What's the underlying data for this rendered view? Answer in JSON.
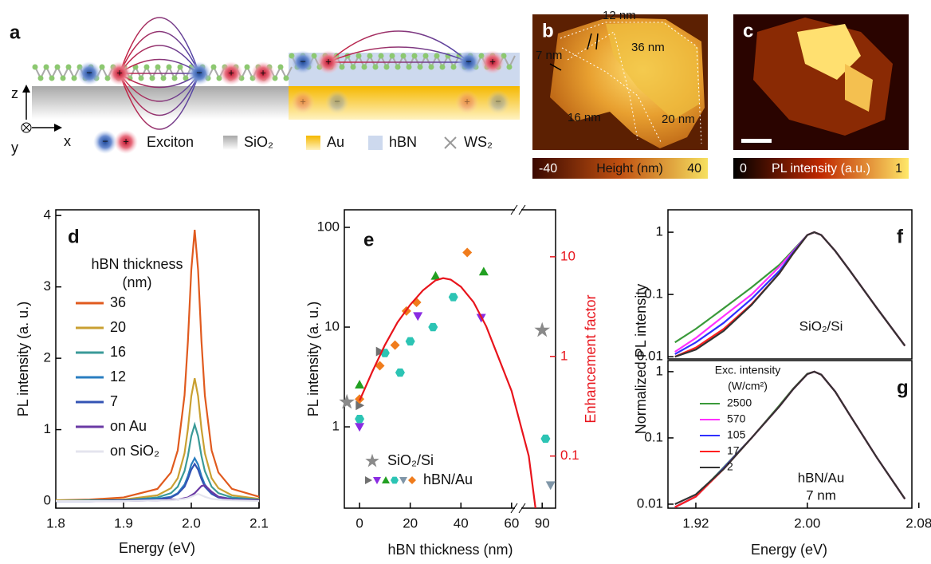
{
  "panels": {
    "a": {
      "label": "a",
      "axes": [
        "z",
        "x",
        "y"
      ],
      "legend": [
        "Exciton",
        "SiO₂",
        "Au",
        "hBN",
        "WS₂"
      ],
      "plus": "+",
      "minus": "−"
    },
    "b": {
      "label": "b",
      "annotations": [
        "12 nm",
        "7 nm",
        "36 nm",
        "16 nm",
        "20 nm"
      ],
      "colorbar": {
        "min": -40,
        "max": 40,
        "label": "Height (nm)"
      }
    },
    "c": {
      "label": "c",
      "colorbar": {
        "min": 0,
        "max": 1,
        "label": "PL intensity (a.u.)"
      }
    }
  },
  "chart_data": [
    {
      "type": "line",
      "panel_label": "d",
      "x_label": "Energy (eV)",
      "y_label": "PL intensity (a. u.)",
      "x": [
        1.8,
        1.85,
        1.9,
        1.95,
        1.97,
        1.98,
        1.99,
        1.995,
        2.0,
        2.005,
        2.01,
        2.015,
        2.02,
        2.03,
        2.04,
        2.06,
        2.1
      ],
      "xlim": [
        1.8,
        2.1
      ],
      "xticks": [
        1.8,
        1.9,
        {
          "value": 2,
          "label": "2.0"
        },
        2.1
      ],
      "ylim": [
        -0.1,
        4.08
      ],
      "yticks": [
        0,
        1,
        2,
        3,
        4
      ],
      "legend_title": [
        "hBN thickness",
        "(nm)"
      ],
      "series": [
        {
          "name": "36",
          "color": "#e05a1e",
          "values": [
            0.01,
            0.02,
            0.05,
            0.17,
            0.4,
            0.71,
            1.48,
            2.24,
            3.24,
            3.8,
            3.24,
            2.24,
            1.48,
            0.71,
            0.4,
            0.17,
            0.06
          ]
        },
        {
          "name": "20",
          "color": "#c9a032",
          "values": [
            0.01,
            0.01,
            0.02,
            0.08,
            0.18,
            0.32,
            0.67,
            1.01,
            1.47,
            1.72,
            1.47,
            1.01,
            0.67,
            0.32,
            0.18,
            0.08,
            0.03
          ]
        },
        {
          "name": "16",
          "color": "#3a9a98",
          "values": [
            0,
            0.01,
            0.01,
            0.05,
            0.11,
            0.2,
            0.42,
            0.63,
            0.91,
            1.07,
            0.91,
            0.63,
            0.42,
            0.2,
            0.11,
            0.05,
            0.02
          ]
        },
        {
          "name": "12",
          "color": "#2a7ec0",
          "values": [
            0,
            0,
            0.01,
            0.03,
            0.06,
            0.11,
            0.23,
            0.35,
            0.51,
            0.6,
            0.51,
            0.35,
            0.23,
            0.11,
            0.06,
            0.03,
            0.01
          ]
        },
        {
          "name": "7",
          "color": "#3454b4",
          "values": [
            0,
            0,
            0.01,
            0.02,
            0.05,
            0.1,
            0.2,
            0.31,
            0.44,
            0.52,
            0.44,
            0.31,
            0.2,
            0.1,
            0.05,
            0.02,
            0.01
          ]
        },
        {
          "name": "on Au",
          "color": "#6a3aa4",
          "values": [
            0,
            0,
            0,
            0.01,
            0.02,
            0.02,
            0.04,
            0.05,
            0.08,
            0.11,
            0.16,
            0.21,
            0.22,
            0.13,
            0.06,
            0.02,
            0.01
          ]
        },
        {
          "name": "on SiO₂",
          "color": "#e4e4ee",
          "values": [
            0,
            0,
            0,
            0.01,
            0.01,
            0.02,
            0.03,
            0.04,
            0.06,
            0.08,
            0.1,
            0.08,
            0.06,
            0.03,
            0.02,
            0.01,
            0
          ]
        }
      ]
    },
    {
      "type": "scatter",
      "panel_label": "e",
      "x_label": "hBN thickness (nm)",
      "y_label": "PL intensity (a. u.)",
      "x_segments": [
        {
          "xlim": [
            -6,
            61
          ],
          "xticks": [
            0,
            20,
            40,
            60
          ]
        },
        {
          "xlim": [
            84,
            94
          ],
          "xticks": [
            90
          ]
        }
      ],
      "ylog": true,
      "ylim": [
        0.153,
        150
      ],
      "yticks": [
        1,
        10,
        100
      ],
      "y2lim": [
        0.03,
        29.6
      ],
      "y2ticks": [
        0.1,
        1,
        10
      ],
      "y2_label": "Enhancement factor",
      "y2_color": "#e8141c",
      "series": [
        {
          "name": "SiO₂/Si",
          "marker": "star",
          "color": "#8a8a8a",
          "x": [
            -5,
            90
          ],
          "values": [
            1.77,
            9.3
          ]
        },
        {
          "name": "hBN/Au",
          "samples": [
            {
              "marker": "tri-right",
              "color": "#707070",
              "x": [
                0,
                8
              ],
              "values": [
                1.64,
                5.7
              ]
            },
            {
              "marker": "tri-down",
              "color": "#8a2be2",
              "x": [
                0,
                23,
                48
              ],
              "values": [
                1.0,
                12.9,
                12.4
              ]
            },
            {
              "marker": "tri-up",
              "color": "#22a022",
              "x": [
                0,
                30,
                49
              ],
              "values": [
                2.65,
                32.6,
                36
              ]
            },
            {
              "marker": "hexagon",
              "color": "#2cc4b4",
              "x": [
                0,
                10,
                16,
                20,
                29,
                37,
                91
              ],
              "values": [
                1.2,
                5.5,
                3.5,
                7.2,
                10,
                20,
                0.76
              ]
            },
            {
              "marker": "tri-down",
              "color": "#8096a8",
              "x": [
                92.5
              ],
              "values": [
                0.26
              ]
            },
            {
              "marker": "diamond",
              "color": "#f07c1c",
              "x": [
                0,
                8,
                14,
                18.5,
                22.5,
                42.5
              ],
              "values": [
                1.9,
                4.1,
                6.6,
                14.5,
                17.7,
                56
              ]
            }
          ]
        },
        {
          "axis": "y2",
          "color": "#e8141c",
          "x": [
            0,
            5,
            10,
            15,
            20,
            25,
            30,
            33,
            36,
            40,
            45,
            50,
            55,
            60,
            86,
            88
          ],
          "values": [
            0.36,
            0.7,
            1.3,
            2.2,
            3.3,
            4.6,
            5.8,
            6.1,
            5.9,
            5.0,
            3.5,
            2.0,
            0.95,
            0.45,
            0.1,
            0.03
          ]
        }
      ]
    },
    {
      "type": "line",
      "panel_label": "f",
      "y_label": "Normalized PL intensity",
      "annotations": [
        "SiO₂/Si"
      ],
      "x": [
        1.905,
        1.92,
        1.94,
        1.96,
        1.98,
        1.99,
        2.0,
        2.005,
        2.01,
        2.02,
        2.03,
        2.05,
        2.07
      ],
      "xlim": [
        1.9,
        2.075
      ],
      "ylog": true,
      "ylim": [
        0.0092,
        2.29
      ],
      "yticks": [
        0.01,
        0.1,
        1
      ],
      "series": [
        {
          "color": "#3a9a3a",
          "values": [
            0.017,
            0.028,
            0.06,
            0.13,
            0.3,
            0.52,
            0.9,
            1,
            0.9,
            0.5,
            0.25,
            0.06,
            0.015
          ]
        },
        {
          "color": "#ff30ff",
          "values": [
            0.012,
            0.02,
            0.045,
            0.1,
            0.28,
            0.5,
            0.9,
            1,
            0.9,
            0.5,
            0.25,
            0.06,
            0.015
          ]
        },
        {
          "color": "#3030ff",
          "values": [
            0.011,
            0.017,
            0.035,
            0.085,
            0.24,
            0.48,
            0.9,
            1,
            0.9,
            0.5,
            0.25,
            0.06,
            0.015
          ]
        },
        {
          "color": "#ff2020",
          "values": [
            0.01,
            0.014,
            0.028,
            0.07,
            0.22,
            0.46,
            0.9,
            1,
            0.9,
            0.5,
            0.25,
            0.06,
            0.015
          ]
        },
        {
          "color": "#333333",
          "values": [
            0.01,
            0.013,
            0.026,
            0.068,
            0.22,
            0.46,
            0.9,
            1,
            0.9,
            0.5,
            0.25,
            0.06,
            0.015
          ]
        }
      ]
    },
    {
      "type": "line",
      "panel_label": "g",
      "x_label": "Energy (eV)",
      "annotations": [
        "hBN/Au",
        "7 nm"
      ],
      "x": [
        1.905,
        1.92,
        1.94,
        1.96,
        1.98,
        1.99,
        2.0,
        2.005,
        2.01,
        2.02,
        2.03,
        2.05,
        2.07
      ],
      "xlim": [
        1.9,
        2.075
      ],
      "xticks": [
        1.92,
        {
          "value": 2,
          "label": "2.00"
        },
        2.08
      ],
      "ylog": true,
      "ylim": [
        0.0087,
        1.47
      ],
      "yticks": [
        0.01,
        0.1,
        1
      ],
      "legend_title": [
        "Exc. intensity",
        "(W/cm²)"
      ],
      "series": [
        {
          "name": "2500",
          "color": "#3a9a3a",
          "values": [
            0.009,
            0.013,
            0.036,
            0.1,
            0.31,
            0.56,
            0.93,
            1,
            0.9,
            0.5,
            0.23,
            0.05,
            0.012
          ]
        },
        {
          "name": "570",
          "color": "#ff30ff",
          "values": [
            0.009,
            0.013,
            0.035,
            0.1,
            0.3,
            0.55,
            0.92,
            1,
            0.9,
            0.5,
            0.23,
            0.05,
            0.012
          ]
        },
        {
          "name": "105",
          "color": "#3030ff",
          "values": [
            0.009,
            0.013,
            0.035,
            0.1,
            0.3,
            0.55,
            0.92,
            1,
            0.9,
            0.5,
            0.23,
            0.05,
            0.012
          ]
        },
        {
          "name": "17",
          "color": "#ff2020",
          "values": [
            0.009,
            0.013,
            0.034,
            0.1,
            0.3,
            0.55,
            0.92,
            1,
            0.9,
            0.5,
            0.23,
            0.05,
            0.012
          ]
        },
        {
          "name": "2",
          "color": "#333333",
          "values": [
            0.01,
            0.014,
            0.034,
            0.1,
            0.3,
            0.55,
            0.92,
            1,
            0.9,
            0.5,
            0.23,
            0.05,
            0.012
          ]
        }
      ]
    }
  ]
}
